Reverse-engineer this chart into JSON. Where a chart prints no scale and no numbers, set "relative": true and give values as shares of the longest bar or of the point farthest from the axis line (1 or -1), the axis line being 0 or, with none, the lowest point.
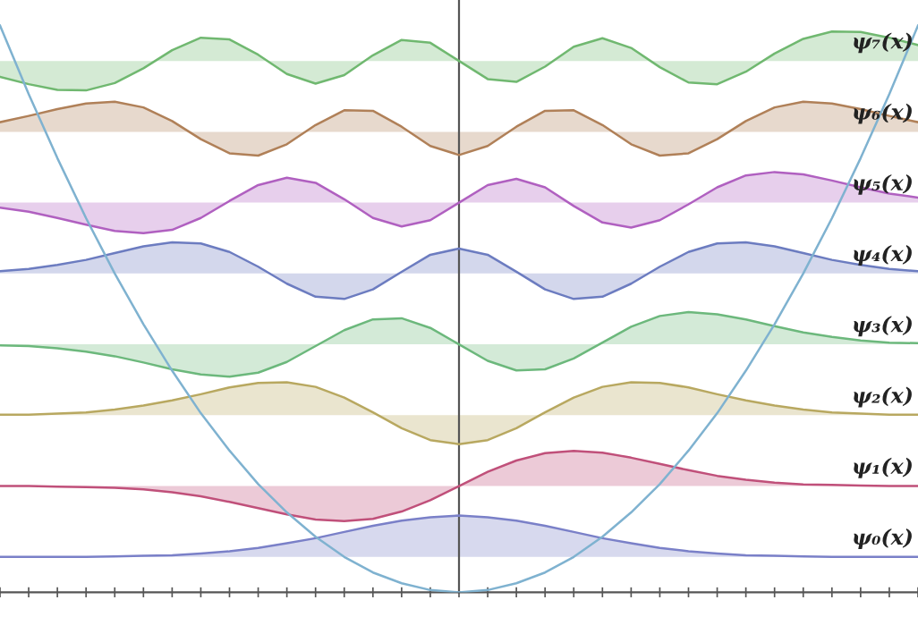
{
  "chart_data": {
    "type": "line",
    "relative": true,
    "categories": [
      null,
      null,
      null,
      null,
      null,
      null,
      null,
      null,
      null,
      null,
      null,
      null,
      null,
      null,
      null,
      null,
      null,
      null,
      null,
      null,
      null,
      null,
      null,
      null,
      null,
      null,
      null,
      null,
      null,
      null,
      null,
      null,
      null
    ],
    "grid": false,
    "legend": false,
    "marker": "none",
    "line_style": "solid",
    "series": [
      {
        "name": "ψ₀(x)",
        "color": "#7a80c8",
        "lower": [
          0.0625,
          0.0625,
          0.0625,
          0.0625,
          0.0625,
          0.0625,
          0.0625,
          0.0625,
          0.0625,
          0.0625,
          0.0625,
          0.0625,
          0.0625,
          0.0625,
          0.0625,
          0.0625,
          0.0625,
          0.0625,
          0.0625,
          0.0625,
          0.0625,
          0.0625,
          0.0625,
          0.0625,
          0.0625,
          0.0625,
          0.0625,
          0.0625,
          0.0625,
          0.0625,
          0.0625,
          0.0625,
          0.0625
        ],
        "upper": [
          0.0625,
          0.0625,
          0.0625,
          0.0625,
          0.0635,
          0.0645,
          0.0655,
          0.0685,
          0.0725,
          0.0785,
          0.0865,
          0.0955,
          0.1065,
          0.1175,
          0.1265,
          0.1325,
          0.1355,
          0.1325,
          0.1265,
          0.1175,
          0.1065,
          0.0955,
          0.0865,
          0.0785,
          0.0725,
          0.0685,
          0.0655,
          0.0645,
          0.0635,
          0.0625,
          0.0625,
          0.0625,
          0.0625
        ],
        "values": [
          0.0625,
          0.0625,
          0.0625,
          0.0625,
          0.0635,
          0.0645,
          0.0655,
          0.0685,
          0.0725,
          0.0785,
          0.0865,
          0.0955,
          0.1065,
          0.1175,
          0.1265,
          0.1325,
          0.1355,
          0.1325,
          0.1265,
          0.1175,
          0.1065,
          0.0955,
          0.0865,
          0.0785,
          0.0725,
          0.0685,
          0.0655,
          0.0645,
          0.0635,
          0.0625,
          0.0625,
          0.0625,
          0.0625
        ]
      },
      {
        "name": "ψ₁(x)",
        "color": "#c0507a",
        "lower": [
          0.1875,
          0.1875,
          0.1875,
          0.1875,
          0.1875,
          0.1875,
          0.1875,
          0.1875,
          0.1875,
          0.1875,
          0.1875,
          0.1875,
          0.1875,
          0.1875,
          0.1875,
          0.1875,
          0.1875,
          0.1875,
          0.1875,
          0.1875,
          0.1875,
          0.1875,
          0.1875,
          0.1875,
          0.1875,
          0.1875,
          0.1875,
          0.1875,
          0.1875,
          0.1875,
          0.1875,
          0.1875,
          0.1875
        ],
        "upper": [
          0.1875,
          0.1875,
          0.1865,
          0.1855,
          0.1845,
          0.1815,
          0.1765,
          0.1695,
          0.1595,
          0.1485,
          0.1375,
          0.1285,
          0.1255,
          0.1295,
          0.1425,
          0.1625,
          0.1875,
          0.2125,
          0.2325,
          0.2455,
          0.2495,
          0.2465,
          0.2375,
          0.2265,
          0.2155,
          0.2055,
          0.1985,
          0.1935,
          0.1905,
          0.1895,
          0.1885,
          0.1875,
          0.1875
        ],
        "values": [
          0.1875,
          0.1875,
          0.1865,
          0.1855,
          0.1845,
          0.1815,
          0.1765,
          0.1695,
          0.1595,
          0.1485,
          0.1375,
          0.1285,
          0.1255,
          0.1295,
          0.1425,
          0.1625,
          0.1875,
          0.2125,
          0.2325,
          0.2455,
          0.2495,
          0.2465,
          0.2375,
          0.2265,
          0.2155,
          0.2055,
          0.1985,
          0.1935,
          0.1905,
          0.1895,
          0.1885,
          0.1875,
          0.1875
        ]
      },
      {
        "name": "ψ₂(x)",
        "color": "#b8a860",
        "lower": [
          0.3125,
          0.3125,
          0.3125,
          0.3125,
          0.3125,
          0.3125,
          0.3125,
          0.3125,
          0.3125,
          0.3125,
          0.3125,
          0.3125,
          0.3125,
          0.3125,
          0.3125,
          0.3125,
          0.3125,
          0.3125,
          0.3125,
          0.3125,
          0.3125,
          0.3125,
          0.3125,
          0.3125,
          0.3125,
          0.3125,
          0.3125,
          0.3125,
          0.3125,
          0.3125,
          0.3125,
          0.3125,
          0.3125
        ],
        "upper": [
          0.3135,
          0.3135,
          0.3155,
          0.3175,
          0.3225,
          0.3295,
          0.3385,
          0.3495,
          0.3615,
          0.3695,
          0.3705,
          0.3625,
          0.3435,
          0.3175,
          0.2895,
          0.2685,
          0.2615,
          0.2685,
          0.2895,
          0.3175,
          0.3435,
          0.3625,
          0.3705,
          0.3695,
          0.3615,
          0.3495,
          0.3385,
          0.3295,
          0.3225,
          0.3175,
          0.3155,
          0.3135,
          0.3135
        ],
        "values": [
          0.3135,
          0.3135,
          0.3155,
          0.3175,
          0.3225,
          0.3295,
          0.3385,
          0.3495,
          0.3615,
          0.3695,
          0.3705,
          0.3625,
          0.3435,
          0.3175,
          0.2895,
          0.2685,
          0.2615,
          0.2685,
          0.2895,
          0.3175,
          0.3435,
          0.3625,
          0.3705,
          0.3695,
          0.3615,
          0.3495,
          0.3385,
          0.3295,
          0.3225,
          0.3175,
          0.3155,
          0.3135,
          0.3135
        ]
      },
      {
        "name": "ψ₃(x)",
        "color": "#6cb87c",
        "lower": [
          0.4375,
          0.4375,
          0.4375,
          0.4375,
          0.4375,
          0.4375,
          0.4375,
          0.4375,
          0.4375,
          0.4375,
          0.4375,
          0.4375,
          0.4375,
          0.4375,
          0.4375,
          0.4375,
          0.4375,
          0.4375,
          0.4375,
          0.4375,
          0.4375,
          0.4375,
          0.4375,
          0.4375,
          0.4375,
          0.4375,
          0.4375,
          0.4375,
          0.4375,
          0.4375,
          0.4375,
          0.4375,
          0.4375
        ],
        "upper": [
          0.4355,
          0.4345,
          0.4305,
          0.4245,
          0.4165,
          0.4055,
          0.3935,
          0.3845,
          0.3805,
          0.3875,
          0.4065,
          0.4345,
          0.4625,
          0.4815,
          0.4835,
          0.4665,
          0.4375,
          0.4085,
          0.3915,
          0.3935,
          0.4125,
          0.4405,
          0.4685,
          0.4875,
          0.4945,
          0.4905,
          0.4815,
          0.4695,
          0.4585,
          0.4505,
          0.4445,
          0.4405,
          0.4395
        ],
        "values": [
          0.4355,
          0.4345,
          0.4305,
          0.4245,
          0.4165,
          0.4055,
          0.3935,
          0.3845,
          0.3805,
          0.3875,
          0.4065,
          0.4345,
          0.4625,
          0.4815,
          0.4835,
          0.4665,
          0.4375,
          0.4085,
          0.3915,
          0.3935,
          0.4125,
          0.4405,
          0.4685,
          0.4875,
          0.4945,
          0.4905,
          0.4815,
          0.4695,
          0.4585,
          0.4505,
          0.4445,
          0.4405,
          0.4395
        ]
      },
      {
        "name": "ψ₄(x)",
        "color": "#6c7cc0",
        "lower": [
          0.5625,
          0.5625,
          0.5625,
          0.5625,
          0.5625,
          0.5625,
          0.5625,
          0.5625,
          0.5625,
          0.5625,
          0.5625,
          0.5625,
          0.5625,
          0.5625,
          0.5625,
          0.5625,
          0.5625,
          0.5625,
          0.5625,
          0.5625,
          0.5625,
          0.5625,
          0.5625,
          0.5625,
          0.5625,
          0.5625,
          0.5625,
          0.5625,
          0.5625,
          0.5625,
          0.5625,
          0.5625,
          0.5625
        ],
        "upper": [
          0.5665,
          0.5705,
          0.5775,
          0.5865,
          0.5985,
          0.6105,
          0.6175,
          0.6155,
          0.6005,
          0.5745,
          0.5445,
          0.5215,
          0.5175,
          0.5345,
          0.5655,
          0.5955,
          0.6065,
          0.5955,
          0.5655,
          0.5345,
          0.5175,
          0.5215,
          0.5445,
          0.5745,
          0.6005,
          0.6155,
          0.6175,
          0.6105,
          0.5985,
          0.5865,
          0.5775,
          0.5705,
          0.5665
        ],
        "values": [
          0.5665,
          0.5705,
          0.5775,
          0.5865,
          0.5985,
          0.6105,
          0.6175,
          0.6155,
          0.6005,
          0.5745,
          0.5445,
          0.5215,
          0.5175,
          0.5345,
          0.5655,
          0.5955,
          0.6065,
          0.5955,
          0.5655,
          0.5345,
          0.5175,
          0.5215,
          0.5445,
          0.5745,
          0.6005,
          0.6155,
          0.6175,
          0.6105,
          0.5985,
          0.5865,
          0.5775,
          0.5705,
          0.5665
        ]
      },
      {
        "name": "ψ₅(x)",
        "color": "#b060c0",
        "lower": [
          0.6875,
          0.6875,
          0.6875,
          0.6875,
          0.6875,
          0.6875,
          0.6875,
          0.6875,
          0.6875,
          0.6875,
          0.6875,
          0.6875,
          0.6875,
          0.6875,
          0.6875,
          0.6875,
          0.6875,
          0.6875,
          0.6875,
          0.6875,
          0.6875,
          0.6875,
          0.6875,
          0.6875,
          0.6875,
          0.6875,
          0.6875,
          0.6875,
          0.6875,
          0.6875,
          0.6875,
          0.6875,
          0.6875
        ],
        "upper": [
          0.6785,
          0.6715,
          0.6605,
          0.6485,
          0.6375,
          0.6335,
          0.6395,
          0.6605,
          0.6905,
          0.7185,
          0.7315,
          0.7225,
          0.6935,
          0.6605,
          0.6455,
          0.6565,
          0.6875,
          0.7185,
          0.7295,
          0.7145,
          0.6815,
          0.6525,
          0.6435,
          0.6565,
          0.6845,
          0.7145,
          0.7355,
          0.7415,
          0.7375,
          0.7265,
          0.7145,
          0.7035,
          0.6965
        ],
        "values": [
          0.6785,
          0.6715,
          0.6605,
          0.6485,
          0.6375,
          0.6335,
          0.6395,
          0.6605,
          0.6905,
          0.7185,
          0.7315,
          0.7225,
          0.6935,
          0.6605,
          0.6455,
          0.6565,
          0.6875,
          0.7185,
          0.7295,
          0.7145,
          0.6815,
          0.6525,
          0.6435,
          0.6565,
          0.6845,
          0.7145,
          0.7355,
          0.7415,
          0.7375,
          0.7265,
          0.7145,
          0.7035,
          0.6965
        ]
      },
      {
        "name": "ψ₆(x)",
        "color": "#b08058",
        "lower": [
          0.8125,
          0.8125,
          0.8125,
          0.8125,
          0.8125,
          0.8125,
          0.8125,
          0.8125,
          0.8125,
          0.8125,
          0.8125,
          0.8125,
          0.8125,
          0.8125,
          0.8125,
          0.8125,
          0.8125,
          0.8125,
          0.8125,
          0.8125,
          0.8125,
          0.8125,
          0.8125,
          0.8125,
          0.8125,
          0.8125,
          0.8125,
          0.8125,
          0.8125,
          0.8125,
          0.8125,
          0.8125,
          0.8125
        ],
        "upper": [
          0.8295,
          0.8405,
          0.8525,
          0.8625,
          0.8655,
          0.8555,
          0.8315,
          0.7995,
          0.7745,
          0.7705,
          0.7905,
          0.8245,
          0.8505,
          0.8495,
          0.8215,
          0.7875,
          0.7715,
          0.7875,
          0.8215,
          0.8495,
          0.8505,
          0.8245,
          0.7905,
          0.7705,
          0.7745,
          0.7995,
          0.8315,
          0.8555,
          0.8655,
          0.8625,
          0.8525,
          0.8405,
          0.8295
        ],
        "values": [
          0.8295,
          0.8405,
          0.8525,
          0.8625,
          0.8655,
          0.8555,
          0.8315,
          0.7995,
          0.7745,
          0.7705,
          0.7905,
          0.8245,
          0.8505,
          0.8495,
          0.8215,
          0.7875,
          0.7715,
          0.7875,
          0.8215,
          0.8495,
          0.8505,
          0.8245,
          0.7905,
          0.7705,
          0.7745,
          0.7995,
          0.8315,
          0.8555,
          0.8655,
          0.8625,
          0.8525,
          0.8405,
          0.8295
        ]
      },
      {
        "name": "ψ₇(x)",
        "color": "#70b870",
        "lower": [
          0.9375,
          0.9375,
          0.9375,
          0.9375,
          0.9375,
          0.9375,
          0.9375,
          0.9375,
          0.9375,
          0.9375,
          0.9375,
          0.9375,
          0.9375,
          0.9375,
          0.9375,
          0.9375,
          0.9375,
          0.9375,
          0.9375,
          0.9375,
          0.9375,
          0.9375,
          0.9375,
          0.9375,
          0.9375,
          0.9375,
          0.9375,
          0.9375,
          0.9375,
          0.9375,
          0.9375,
          0.9375,
          0.9375
        ],
        "upper": [
          0.9095,
          0.8965,
          0.8865,
          0.8855,
          0.8985,
          0.9245,
          0.9565,
          0.9785,
          0.9755,
          0.9485,
          0.9145,
          0.8975,
          0.9125,
          0.9475,
          0.9745,
          0.9695,
          0.9375,
          0.9055,
          0.9005,
          0.9275,
          0.9625,
          0.9775,
          0.9605,
          0.9265,
          0.8995,
          0.8965,
          0.9185,
          0.9505,
          0.9765,
          0.9895,
          0.9885,
          0.9785,
          0.9655
        ],
        "values": [
          0.9095,
          0.8965,
          0.8865,
          0.8855,
          0.8985,
          0.9245,
          0.9565,
          0.9785,
          0.9755,
          0.9485,
          0.9145,
          0.8975,
          0.9125,
          0.9475,
          0.9745,
          0.9695,
          0.9375,
          0.9055,
          0.9005,
          0.9275,
          0.9625,
          0.9775,
          0.9605,
          0.9265,
          0.8995,
          0.8965,
          0.9185,
          0.9505,
          0.9765,
          0.9895,
          0.9885,
          0.9785,
          0.9655
        ]
      },
      {
        "color": "#7fb2d0",
        "values": [
          1,
          0.879,
          0.766,
          0.66,
          0.5625,
          0.473,
          0.391,
          0.316,
          0.25,
          0.191,
          0.141,
          0.098,
          0.0625,
          0.035,
          0.016,
          0.004,
          0,
          0.004,
          0.016,
          0.035,
          0.0625,
          0.098,
          0.141,
          0.191,
          0.25,
          0.316,
          0.391,
          0.473,
          0.5625,
          0.66,
          0.766,
          0.879,
          1
        ]
      }
    ]
  }
}
